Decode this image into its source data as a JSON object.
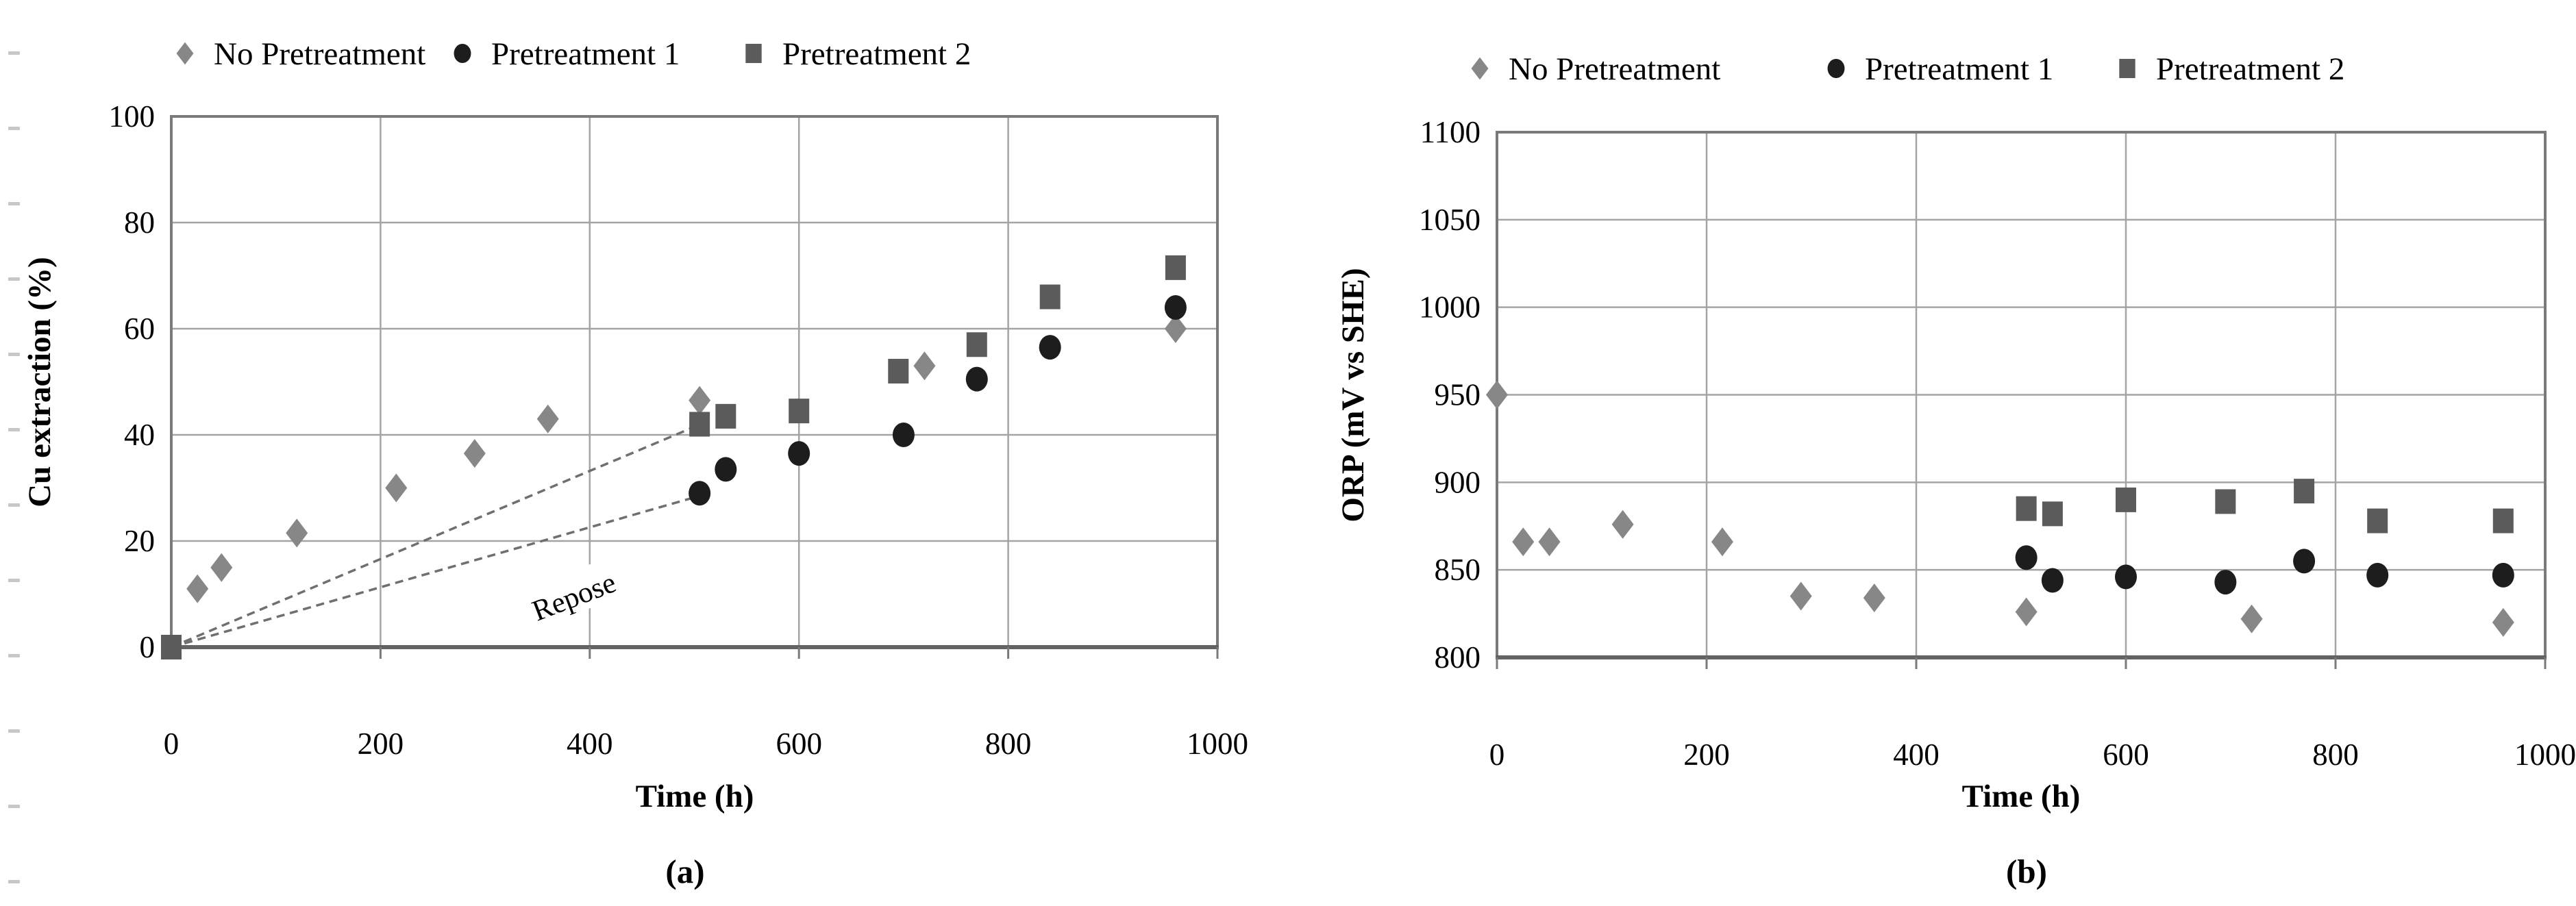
{
  "figure": {
    "panels": [
      {
        "caption": "(a)",
        "x_axis_title": "Time (h)",
        "y_axis_title": "Cu extraction (%)",
        "legend_labels": [
          "No Pretreatment",
          "Pretreatment 1",
          "Pretreatment 2"
        ]
      },
      {
        "caption": "(b)",
        "x_axis_title": "Time (h)",
        "y_axis_title": "ORP (mV vs SHE)",
        "legend_labels": [
          "No Pretreatment",
          "Pretreatment 1",
          "Pretreatment 2"
        ]
      }
    ],
    "colors": {
      "no_pretreatment": "#878787",
      "pretreatment_1": "#1d1d1d",
      "pretreatment_2": "#5b5b5b",
      "gridline": "#a4a4a4",
      "plot_border": "#7a7a7a",
      "axis_line": "#636363",
      "dashed_line": "#6f6f6f"
    }
  },
  "chart_data": [
    {
      "type": "scatter",
      "title": "",
      "xlabel": "Time (h)",
      "ylabel": "Cu extraction (%)",
      "caption": "(a)",
      "xlim": [
        0,
        1000
      ],
      "ylim": [
        0,
        100
      ],
      "xticks": [
        0,
        200,
        400,
        600,
        800,
        1000
      ],
      "yticks": [
        0,
        20,
        40,
        60,
        80,
        100
      ],
      "grid": true,
      "legend_position": "top",
      "series": [
        {
          "name": "No Pretreatment",
          "marker": "diamond",
          "color": "#878787",
          "points": [
            [
              25,
              11
            ],
            [
              48,
              15
            ],
            [
              120,
              21.5
            ],
            [
              215,
              30
            ],
            [
              290,
              36.5
            ],
            [
              360,
              43
            ],
            [
              505,
              46.5
            ],
            [
              720,
              53
            ],
            [
              960,
              60
            ]
          ]
        },
        {
          "name": "Pretreatment 1",
          "marker": "circle",
          "color": "#1d1d1d",
          "points": [
            [
              505,
              29
            ],
            [
              530,
              33.5
            ],
            [
              600,
              36.5
            ],
            [
              700,
              40
            ],
            [
              770,
              50.5
            ],
            [
              840,
              56.5
            ],
            [
              960,
              64
            ]
          ]
        },
        {
          "name": "Pretreatment 2",
          "marker": "square",
          "color": "#5b5b5b",
          "points": [
            [
              0,
              0
            ],
            [
              505,
              42
            ],
            [
              530,
              43.5
            ],
            [
              600,
              44.5
            ],
            [
              695,
              52
            ],
            [
              770,
              57
            ],
            [
              840,
              66
            ],
            [
              960,
              71.5
            ]
          ]
        }
      ],
      "annotations": [
        {
          "type": "text",
          "text": "Repose",
          "x": 385,
          "y": 9.5,
          "rotation": -21
        },
        {
          "type": "dashed_line",
          "from": [
            0,
            0
          ],
          "to": [
            500,
            41.5
          ]
        },
        {
          "type": "dashed_line",
          "from": [
            0,
            0
          ],
          "to": [
            505,
            28.5
          ]
        }
      ]
    },
    {
      "type": "scatter",
      "title": "",
      "xlabel": "Time (h)",
      "ylabel": "ORP (mV vs SHE)",
      "caption": "(b)",
      "xlim": [
        0,
        1000
      ],
      "ylim": [
        800,
        1100
      ],
      "xticks": [
        0,
        200,
        400,
        600,
        800,
        1000
      ],
      "yticks": [
        800,
        850,
        900,
        950,
        1000,
        1050,
        1100
      ],
      "grid": true,
      "legend_position": "top",
      "series": [
        {
          "name": "No Pretreatment",
          "marker": "diamond",
          "color": "#878787",
          "points": [
            [
              0,
              950
            ],
            [
              25,
              866
            ],
            [
              50,
              866
            ],
            [
              120,
              876
            ],
            [
              215,
              866
            ],
            [
              290,
              835
            ],
            [
              360,
              834
            ],
            [
              505,
              826
            ],
            [
              720,
              822
            ],
            [
              960,
              820
            ]
          ]
        },
        {
          "name": "Pretreatment 1",
          "marker": "circle",
          "color": "#1d1d1d",
          "points": [
            [
              505,
              857
            ],
            [
              530,
              844
            ],
            [
              600,
              846
            ],
            [
              695,
              843
            ],
            [
              770,
              855
            ],
            [
              840,
              847
            ],
            [
              960,
              847
            ]
          ]
        },
        {
          "name": "Pretreatment 2",
          "marker": "square",
          "color": "#5b5b5b",
          "points": [
            [
              505,
              885
            ],
            [
              530,
              882
            ],
            [
              600,
              890
            ],
            [
              695,
              889
            ],
            [
              770,
              895
            ],
            [
              840,
              878
            ],
            [
              960,
              878
            ]
          ]
        }
      ],
      "annotations": []
    }
  ]
}
